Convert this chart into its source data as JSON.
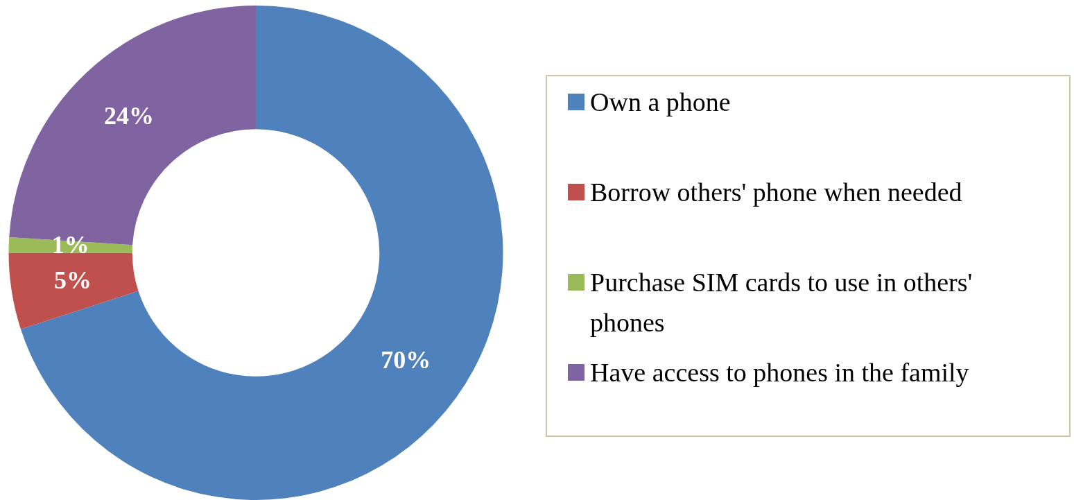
{
  "chart_data": {
    "type": "donut",
    "categories": [
      "Own a phone",
      "Borrow others' phone when needed",
      "Purchase SIM cards to use in others' phones",
      "Have access to phones in the family"
    ],
    "values": [
      70,
      5,
      1,
      24
    ],
    "colors": [
      "#4f81bd",
      "#c0504d",
      "#9bbb59",
      "#8064a2"
    ],
    "value_labels": [
      "70%",
      "5%",
      "1%",
      "24%"
    ],
    "legend": "right"
  }
}
